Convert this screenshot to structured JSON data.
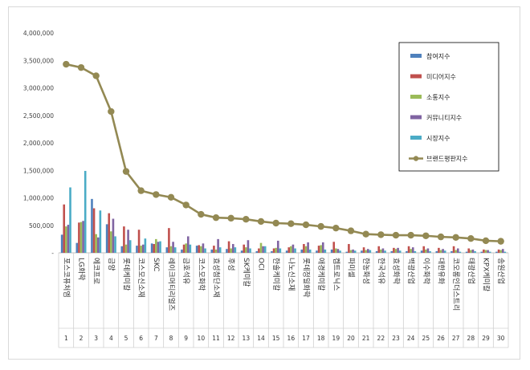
{
  "chart_data": {
    "type": "bar",
    "categories": [
      "포스코퓨처엠",
      "LG화학",
      "에코프로",
      "금양",
      "롯데케미칼",
      "코스모신소재",
      "SKC",
      "레이크머티리얼즈",
      "금호석유",
      "코스모화학",
      "효성첨단소재",
      "후성",
      "SK케미칼",
      "OCI",
      "한솔케미칼",
      "나노신소재",
      "롯데정밀화학",
      "애경케미칼",
      "켐트로닉스",
      "파미셀",
      "한농화성",
      "한국석유",
      "효성화학",
      "백광산업",
      "이수화학",
      "대한유화",
      "코오롱인더스트리",
      "태광산업",
      "KPX케미칼",
      "송원산업"
    ],
    "ranks": [
      "1",
      "2",
      "3",
      "4",
      "5",
      "6",
      "7",
      "8",
      "9",
      "10",
      "11",
      "12",
      "13",
      "14",
      "15",
      "16",
      "17",
      "18",
      "19",
      "20",
      "21",
      "22",
      "23",
      "24",
      "25",
      "26",
      "27",
      "28",
      "29",
      "30"
    ],
    "series": [
      {
        "name": "참여지수",
        "color": "#4f81bd",
        "values": [
          330000,
          180000,
          980000,
          520000,
          120000,
          130000,
          170000,
          100000,
          60000,
          130000,
          60000,
          70000,
          40000,
          30000,
          30000,
          40000,
          60000,
          40000,
          60000,
          20000,
          40000,
          30000,
          30000,
          30000,
          40000,
          30000,
          30000,
          20000,
          20000,
          20000
        ]
      },
      {
        "name": "미디어지수",
        "color": "#c0504d",
        "values": [
          880000,
          550000,
          810000,
          720000,
          480000,
          420000,
          160000,
          450000,
          150000,
          140000,
          130000,
          210000,
          150000,
          80000,
          80000,
          100000,
          160000,
          130000,
          200000,
          160000,
          100000,
          120000,
          90000,
          120000,
          120000,
          90000,
          120000,
          80000,
          60000,
          60000
        ]
      },
      {
        "name": "소통지수",
        "color": "#9bbb59",
        "values": [
          480000,
          560000,
          340000,
          390000,
          150000,
          130000,
          250000,
          120000,
          170000,
          120000,
          60000,
          80000,
          100000,
          180000,
          90000,
          120000,
          120000,
          140000,
          80000,
          50000,
          50000,
          60000,
          70000,
          70000,
          60000,
          50000,
          50000,
          50000,
          50000,
          50000
        ]
      },
      {
        "name": "커뮤니티지수",
        "color": "#8064a2",
        "values": [
          510000,
          580000,
          280000,
          620000,
          420000,
          150000,
          200000,
          200000,
          300000,
          170000,
          250000,
          160000,
          230000,
          120000,
          220000,
          150000,
          190000,
          190000,
          70000,
          60000,
          70000,
          80000,
          90000,
          100000,
          80000,
          70000,
          80000,
          60000,
          50000,
          70000
        ]
      },
      {
        "name": "시장지수",
        "color": "#4bacc6",
        "values": [
          1190000,
          1490000,
          770000,
          300000,
          230000,
          260000,
          210000,
          100000,
          150000,
          80000,
          100000,
          100000,
          80000,
          120000,
          80000,
          80000,
          60000,
          60000,
          40000,
          40000,
          50000,
          40000,
          40000,
          30000,
          30000,
          40000,
          20000,
          30000,
          20000,
          20000
        ]
      }
    ],
    "line": {
      "name": "브랜드평판지수",
      "color": "#938953",
      "values": [
        3430000,
        3370000,
        3220000,
        2570000,
        1480000,
        1130000,
        1060000,
        1010000,
        870000,
        700000,
        640000,
        630000,
        610000,
        570000,
        540000,
        530000,
        510000,
        480000,
        450000,
        400000,
        340000,
        330000,
        320000,
        320000,
        310000,
        290000,
        280000,
        260000,
        220000,
        210000
      ]
    },
    "ylim": [
      0,
      4000000
    ],
    "yticks": [
      "-",
      "500,000",
      "1,000,000",
      "1,500,000",
      "2,000,000",
      "2,500,000",
      "3,000,000",
      "3,500,000",
      "4,000,000"
    ],
    "grid": false,
    "legend": "top-right",
    "title": "",
    "xlabel": "",
    "ylabel": ""
  }
}
